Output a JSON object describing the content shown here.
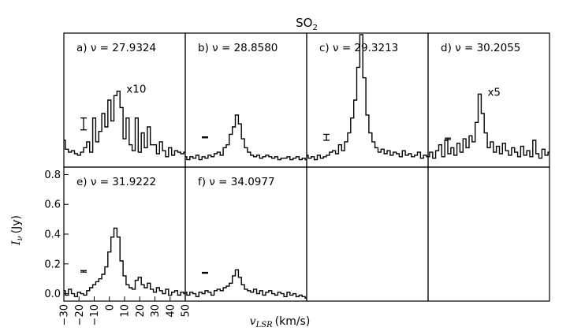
{
  "chart_data": {
    "type": "line",
    "title": "SO2",
    "title_main": "SO",
    "title_sub": "2",
    "ylabel": {
      "symbol": "I",
      "sub": "ν",
      "unit": "(Jy)"
    },
    "xlabel": {
      "symbol": "v",
      "sub": "LSR",
      "unit": "(km/s)"
    },
    "xlim": [
      -30,
      50
    ],
    "ylim": [
      -0.05,
      0.85
    ],
    "xticks": [
      "−30",
      "−20",
      "−10",
      "0",
      "10",
      "20",
      "30",
      "40",
      "50"
    ],
    "yticks": [
      "0.0",
      "0.2",
      "0.4",
      "0.6",
      "0.8"
    ],
    "panels": [
      {
        "name": "a",
        "label": "a) ν = 27.9324",
        "freq": "27.9324",
        "scale": "x10",
        "errorbar": {
          "x": -17,
          "y": 0.24,
          "half": 0.04
        },
        "x": [
          -30,
          -28,
          -26,
          -24,
          -22,
          -20,
          -18,
          -16,
          -14,
          -12,
          -10,
          -8,
          -6,
          -4,
          -2,
          0,
          2,
          4,
          6,
          8,
          10,
          12,
          14,
          16,
          18,
          20,
          22,
          24,
          26,
          28,
          30,
          32,
          34,
          36,
          38,
          40,
          42,
          44,
          46,
          48,
          50
        ],
        "y": [
          0.13,
          0.07,
          0.05,
          0.06,
          0.04,
          0.03,
          0.05,
          0.08,
          0.12,
          0.05,
          0.28,
          0.12,
          0.19,
          0.31,
          0.22,
          0.4,
          0.26,
          0.43,
          0.46,
          0.35,
          0.14,
          0.28,
          0.1,
          0.06,
          0.28,
          0.05,
          0.18,
          0.08,
          0.22,
          0.1,
          0.1,
          0.04,
          0.12,
          0.06,
          0.02,
          0.08,
          0.03,
          0.06,
          0.05,
          0.04,
          0.05
        ]
      },
      {
        "name": "b",
        "label": "b) ν = 28.8580",
        "freq": "28.8580",
        "scale": "",
        "errorbar": {
          "x": -17,
          "y": 0.15,
          "half": 0.003
        },
        "x": [
          -30,
          -28,
          -26,
          -24,
          -22,
          -20,
          -18,
          -16,
          -14,
          -12,
          -10,
          -8,
          -6,
          -4,
          -2,
          0,
          2,
          4,
          6,
          8,
          10,
          12,
          14,
          16,
          18,
          20,
          22,
          24,
          26,
          28,
          30,
          32,
          34,
          36,
          38,
          40,
          42,
          44,
          46,
          48,
          50
        ],
        "y": [
          0.02,
          0.0,
          0.02,
          0.01,
          0.03,
          0.0,
          0.02,
          0.01,
          0.03,
          0.02,
          0.04,
          0.05,
          0.03,
          0.08,
          0.1,
          0.17,
          0.22,
          0.3,
          0.24,
          0.14,
          0.08,
          0.05,
          0.03,
          0.02,
          0.03,
          0.01,
          0.02,
          0.03,
          0.02,
          0.01,
          0.02,
          0.0,
          0.01,
          0.01,
          0.02,
          0.0,
          0.01,
          0.02,
          0.0,
          0.01,
          0.0
        ]
      },
      {
        "name": "c",
        "label": "c) ν = 29.3213",
        "freq": "29.3213",
        "scale": "",
        "errorbar": {
          "x": -17,
          "y": 0.15,
          "half": 0.02
        },
        "x": [
          -30,
          -28,
          -26,
          -24,
          -22,
          -20,
          -18,
          -16,
          -14,
          -12,
          -10,
          -8,
          -6,
          -4,
          -2,
          0,
          2,
          4,
          6,
          8,
          10,
          12,
          14,
          16,
          18,
          20,
          22,
          24,
          26,
          28,
          30,
          32,
          34,
          36,
          38,
          40,
          42,
          44,
          46,
          48,
          50
        ],
        "y": [
          0.03,
          0.01,
          0.02,
          0.0,
          0.03,
          0.01,
          0.02,
          0.03,
          0.05,
          0.06,
          0.04,
          0.1,
          0.06,
          0.12,
          0.18,
          0.28,
          0.4,
          0.62,
          0.84,
          0.55,
          0.3,
          0.18,
          0.12,
          0.08,
          0.05,
          0.07,
          0.04,
          0.06,
          0.03,
          0.05,
          0.04,
          0.02,
          0.06,
          0.03,
          0.04,
          0.02,
          0.03,
          0.05,
          0.01,
          0.03,
          0.02
        ]
      },
      {
        "name": "d",
        "label": "d) ν = 30.2055",
        "freq": "30.2055",
        "scale": "x5",
        "errorbar": {
          "x": -17,
          "y": 0.14,
          "half": 0.005
        },
        "x": [
          -30,
          -28,
          -26,
          -24,
          -22,
          -20,
          -18,
          -16,
          -14,
          -12,
          -10,
          -8,
          -6,
          -4,
          -2,
          0,
          2,
          4,
          6,
          8,
          10,
          12,
          14,
          16,
          18,
          20,
          22,
          24,
          26,
          28,
          30,
          32,
          34,
          36,
          38,
          40,
          42,
          44,
          46,
          48,
          50
        ],
        "y": [
          0.02,
          0.05,
          0.01,
          0.06,
          0.1,
          0.02,
          0.13,
          0.04,
          0.08,
          0.03,
          0.11,
          0.05,
          0.14,
          0.08,
          0.16,
          0.12,
          0.25,
          0.44,
          0.31,
          0.18,
          0.08,
          0.12,
          0.05,
          0.09,
          0.04,
          0.11,
          0.06,
          0.03,
          0.08,
          0.05,
          0.02,
          0.09,
          0.03,
          0.06,
          0.02,
          0.13,
          0.04,
          0.01,
          0.07,
          0.03,
          0.05
        ]
      },
      {
        "name": "e",
        "label": "e) ν = 31.9222",
        "freq": "31.9222",
        "scale": "",
        "errorbar": {
          "x": -17,
          "y": 0.15,
          "half": 0.005
        },
        "x": [
          -30,
          -28,
          -26,
          -24,
          -22,
          -20,
          -18,
          -16,
          -14,
          -12,
          -10,
          -8,
          -6,
          -4,
          -2,
          0,
          2,
          4,
          6,
          8,
          10,
          12,
          14,
          16,
          18,
          20,
          22,
          24,
          26,
          28,
          30,
          32,
          34,
          36,
          38,
          40,
          42,
          44,
          46,
          48,
          50
        ],
        "y": [
          0.02,
          -0.01,
          0.03,
          0.0,
          -0.02,
          0.01,
          0.0,
          -0.01,
          0.02,
          0.04,
          0.06,
          0.08,
          0.1,
          0.13,
          0.18,
          0.28,
          0.38,
          0.44,
          0.38,
          0.22,
          0.12,
          0.06,
          0.04,
          0.03,
          0.09,
          0.11,
          0.06,
          0.04,
          0.07,
          0.03,
          0.01,
          0.04,
          0.02,
          0.0,
          0.03,
          -0.01,
          0.01,
          0.02,
          -0.01,
          0.01,
          0.0
        ]
      },
      {
        "name": "f",
        "label": "f) ν = 34.0977",
        "freq": "34.0977",
        "scale": "",
        "errorbar": {
          "x": -17,
          "y": 0.14,
          "half": 0.003
        },
        "x": [
          -30,
          -28,
          -26,
          -24,
          -22,
          -20,
          -18,
          -16,
          -14,
          -12,
          -10,
          -8,
          -6,
          -4,
          -2,
          0,
          2,
          4,
          6,
          8,
          10,
          12,
          14,
          16,
          18,
          20,
          22,
          24,
          26,
          28,
          30,
          32,
          34,
          36,
          38,
          40,
          42,
          44,
          46,
          48,
          50
        ],
        "y": [
          0.01,
          -0.01,
          0.01,
          0.0,
          -0.02,
          0.01,
          0.0,
          0.02,
          0.01,
          -0.01,
          0.02,
          0.03,
          0.02,
          0.04,
          0.05,
          0.07,
          0.12,
          0.16,
          0.11,
          0.06,
          0.03,
          0.02,
          0.01,
          0.03,
          0.0,
          0.02,
          -0.01,
          0.01,
          0.02,
          0.0,
          -0.01,
          0.01,
          0.0,
          -0.02,
          0.01,
          -0.01,
          0.0,
          -0.02,
          -0.01,
          -0.02,
          -0.03
        ]
      }
    ]
  }
}
